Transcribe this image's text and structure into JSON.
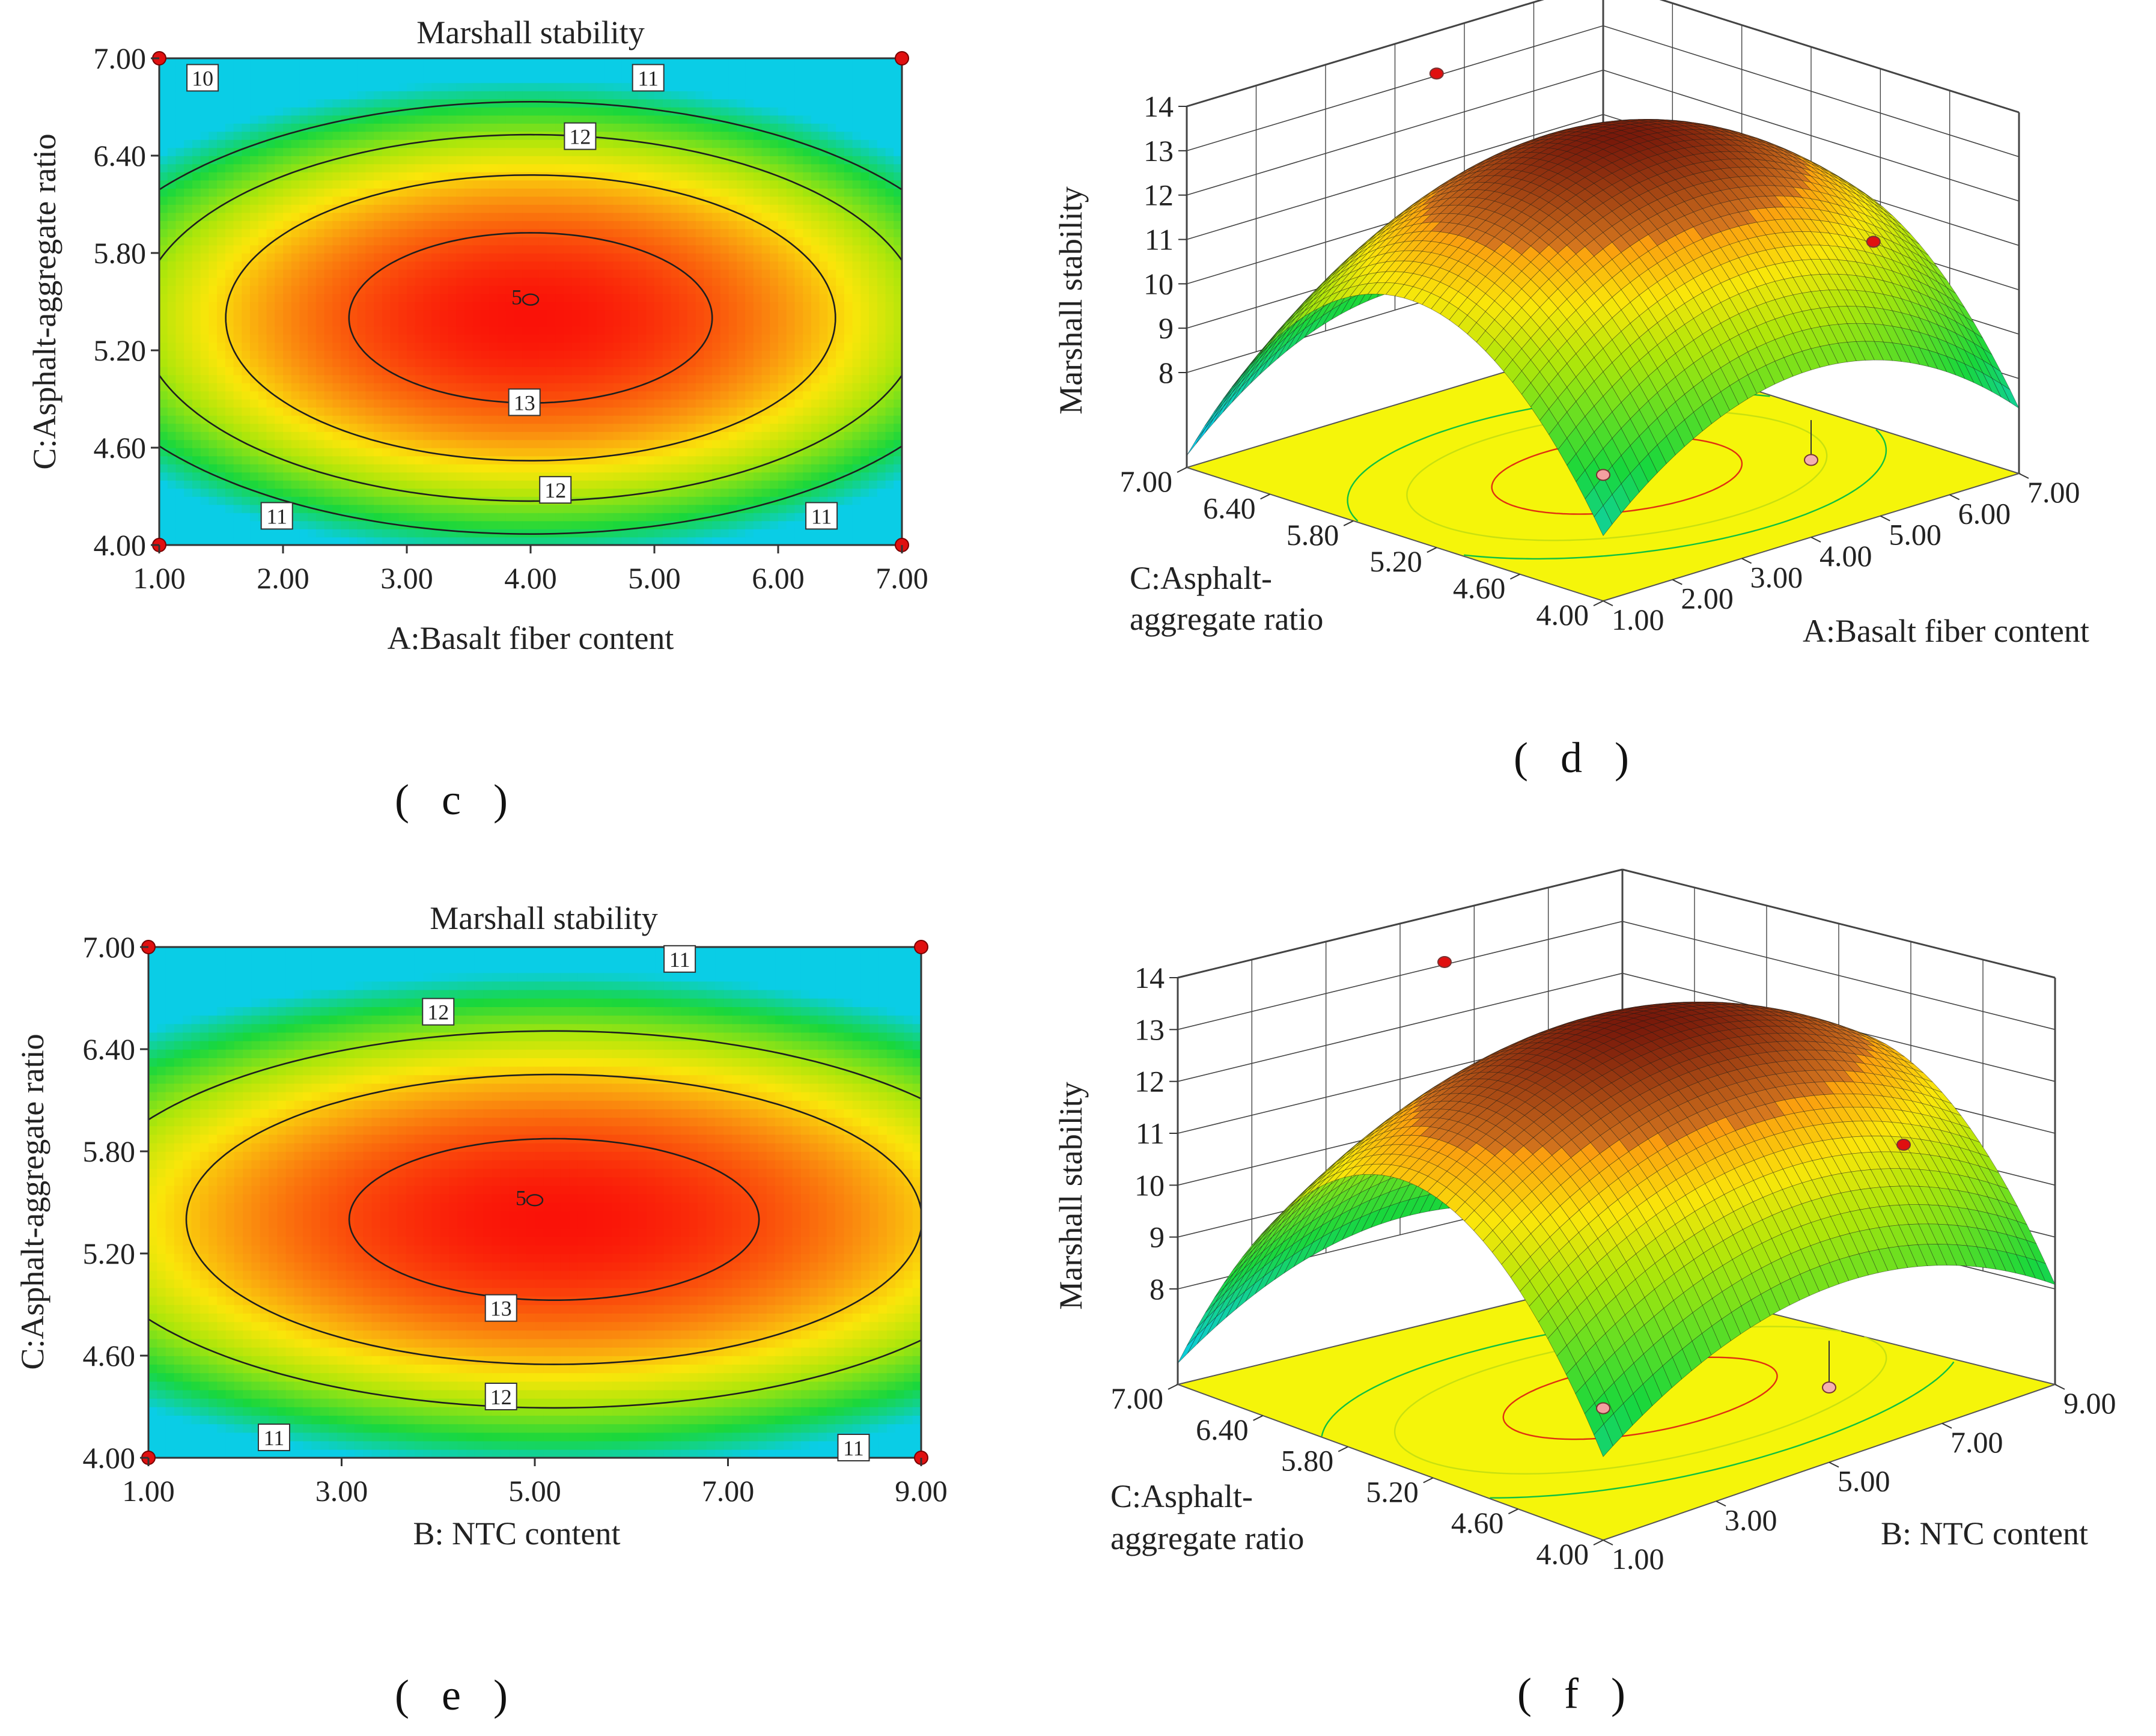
{
  "panels": [
    {
      "caption": "( c )",
      "title": "Marshall stability",
      "xlabel": "A:Basalt fiber content",
      "ylabel": "C:Asphalt-aggregate ratio"
    },
    {
      "caption": "( d )",
      "zlabel": "Marshall stability",
      "xlabel": "A:Basalt fiber content",
      "ylabel": "C:Asphalt-\naggregate ratio"
    },
    {
      "caption": "( e )",
      "title": "Marshall stability",
      "xlabel": "B: NTC content",
      "ylabel": "C:Asphalt-aggregate ratio"
    },
    {
      "caption": "( f )",
      "zlabel": "Marshall stability",
      "xlabel": "B: NTC content",
      "ylabel": "C:Asphalt-\naggregate ratio"
    }
  ],
  "chart_data": [
    {
      "type": "contour",
      "title": "Marshall stability",
      "xlabel": "A:Basalt fiber content",
      "ylabel": "C:Asphalt-aggregate ratio",
      "xlim": [
        1.0,
        7.0
      ],
      "ylim": [
        4.0,
        7.0
      ],
      "xticks": [
        "1.00",
        "2.00",
        "3.00",
        "4.00",
        "5.00",
        "6.00",
        "7.00"
      ],
      "yticks": [
        "4.00",
        "4.60",
        "5.20",
        "5.80",
        "6.40",
        "7.00"
      ],
      "levels": [
        10,
        11,
        12,
        13
      ],
      "level_labels": [
        {
          "text": "10",
          "x": 1.35,
          "y": 6.88
        },
        {
          "text": "11",
          "x": 4.95,
          "y": 6.88
        },
        {
          "text": "12",
          "x": 4.4,
          "y": 6.52
        },
        {
          "text": "13",
          "x": 3.95,
          "y": 4.88
        },
        {
          "text": "12",
          "x": 4.2,
          "y": 4.34
        },
        {
          "text": "11",
          "x": 1.95,
          "y": 4.18
        },
        {
          "text": "11",
          "x": 6.35,
          "y": 4.18
        }
      ],
      "center_point": {
        "label": "5",
        "x": 4.0,
        "y": 5.52
      },
      "design_points": [
        [
          1,
          4
        ],
        [
          7,
          4
        ],
        [
          1,
          7
        ],
        [
          7,
          7
        ]
      ],
      "model": {
        "optimum_x": 4.0,
        "optimum_y": 5.4,
        "max": 13.55,
        "x_range": [
          1.0,
          7.0
        ],
        "y_range": [
          4.0,
          7.0
        ],
        "kx": 2.3,
        "ky": 4.5
      }
    },
    {
      "type": "surface3d",
      "zlabel": "Marshall stability",
      "xlabel": "A:Basalt fiber content",
      "ylabel": "C:Asphalt-aggregate ratio",
      "zticks": [
        "8",
        "9",
        "10",
        "11",
        "12",
        "13",
        "14"
      ],
      "xticks": [
        "1.00",
        "2.00",
        "3.00",
        "4.00",
        "5.00",
        "6.00",
        "7.00"
      ],
      "yticks": [
        "4.00",
        "4.60",
        "5.20",
        "5.80",
        "6.40",
        "7.00"
      ],
      "zlim": [
        8,
        14
      ]
    },
    {
      "type": "contour",
      "title": "Marshall stability",
      "xlabel": "B: NTC content",
      "ylabel": "C:Asphalt-aggregate ratio",
      "xlim": [
        1.0,
        9.0
      ],
      "ylim": [
        4.0,
        7.0
      ],
      "xticks": [
        "1.00",
        "3.00",
        "5.00",
        "7.00",
        "9.00"
      ],
      "yticks": [
        "4.00",
        "4.60",
        "5.20",
        "5.80",
        "6.40",
        "7.00"
      ],
      "levels": [
        11,
        12,
        13
      ],
      "level_labels": [
        {
          "text": "11",
          "x": 6.5,
          "y": 6.93
        },
        {
          "text": "12",
          "x": 4.0,
          "y": 6.62
        },
        {
          "text": "13",
          "x": 4.65,
          "y": 4.88
        },
        {
          "text": "12",
          "x": 4.65,
          "y": 4.36
        },
        {
          "text": "11",
          "x": 2.3,
          "y": 4.12
        },
        {
          "text": "11",
          "x": 8.3,
          "y": 4.06
        }
      ],
      "center_point": {
        "label": "5",
        "x": 5.0,
        "y": 5.52
      },
      "design_points": [
        [
          1,
          4
        ],
        [
          9,
          4
        ],
        [
          1,
          7
        ],
        [
          9,
          7
        ]
      ],
      "model": {
        "optimum_x": 5.2,
        "optimum_y": 5.4,
        "max": 13.45,
        "x_range": [
          1.0,
          9.0
        ],
        "y_range": [
          4.0,
          7.0
        ],
        "kx": 1.6,
        "ky": 4.5
      }
    },
    {
      "type": "surface3d",
      "zlabel": "Marshall stability",
      "xlabel": "B: NTC content",
      "ylabel": "C:Asphalt-aggregate ratio",
      "zticks": [
        "8",
        "9",
        "10",
        "11",
        "12",
        "13",
        "14"
      ],
      "xticks": [
        "1.00",
        "3.00",
        "5.00",
        "7.00",
        "9.00"
      ],
      "yticks": [
        "4.00",
        "4.60",
        "5.20",
        "5.80",
        "6.40",
        "7.00"
      ],
      "zlim": [
        8,
        14
      ]
    }
  ]
}
